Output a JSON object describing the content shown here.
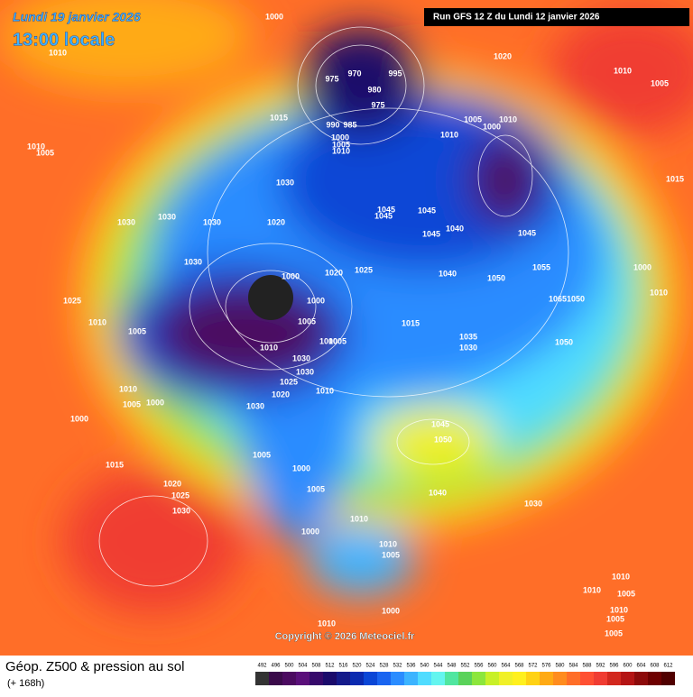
{
  "header": {
    "date": "Lundi 19 janvier 2026",
    "time": "13:00 locale",
    "run": "Run GFS 12 Z du Lundi 12 janvier 2026"
  },
  "copyright": "Copyright © 2026 Meteociel.fr",
  "isobar_labels": [
    1000,
    1010,
    975,
    970,
    995,
    980,
    975,
    1020,
    1010,
    1005,
    1015,
    990,
    985,
    1000,
    1005,
    1010,
    1005,
    1010,
    1000,
    1010,
    1010,
    1005,
    1030,
    1015,
    1045,
    1045,
    1030,
    1030,
    1030,
    1020,
    1045,
    1040,
    1045,
    1045,
    1030,
    1020,
    1025,
    1040,
    1055,
    1000,
    1000,
    1050,
    1025,
    1000,
    1065,
    1050,
    1010,
    1010,
    1005,
    1005,
    1015,
    1035,
    1010,
    1000,
    1005,
    1030,
    1050,
    1030,
    1030,
    1010,
    1000,
    1005,
    1025,
    1020,
    1010,
    1030,
    1045,
    1000,
    1050,
    1005,
    1015,
    1000,
    1020,
    1005,
    1040,
    1025,
    1030,
    1030,
    1010,
    1000,
    1010,
    1005,
    1010,
    1010,
    1005,
    1010,
    1005,
    1000,
    1010,
    1005
  ],
  "legend": {
    "title": "Géop. Z500 & pression au sol",
    "subtitle": "(+ 168h)",
    "ticks": [
      492,
      496,
      500,
      504,
      508,
      512,
      516,
      520,
      524,
      528,
      532,
      536,
      540,
      544,
      548,
      552,
      556,
      560,
      564,
      568,
      572,
      576,
      580,
      584,
      588,
      592,
      596,
      600,
      604,
      608,
      612
    ],
    "colors": [
      "#333333",
      "#3a0a4a",
      "#4b0a60",
      "#5a0f7a",
      "#36096b",
      "#1a0a6b",
      "#141a8a",
      "#0a2ab0",
      "#0a46d6",
      "#1964f0",
      "#2a8cff",
      "#3cb4ff",
      "#50dcff",
      "#64f5ef",
      "#50e6a0",
      "#5ad25a",
      "#8ce63c",
      "#c8f028",
      "#f0f028",
      "#fff01e",
      "#ffd214",
      "#ffaa14",
      "#ff8c1e",
      "#ff6e28",
      "#ff5032",
      "#f03c32",
      "#d2281e",
      "#b41414",
      "#8c0a0a",
      "#6e0000",
      "#500000"
    ]
  }
}
